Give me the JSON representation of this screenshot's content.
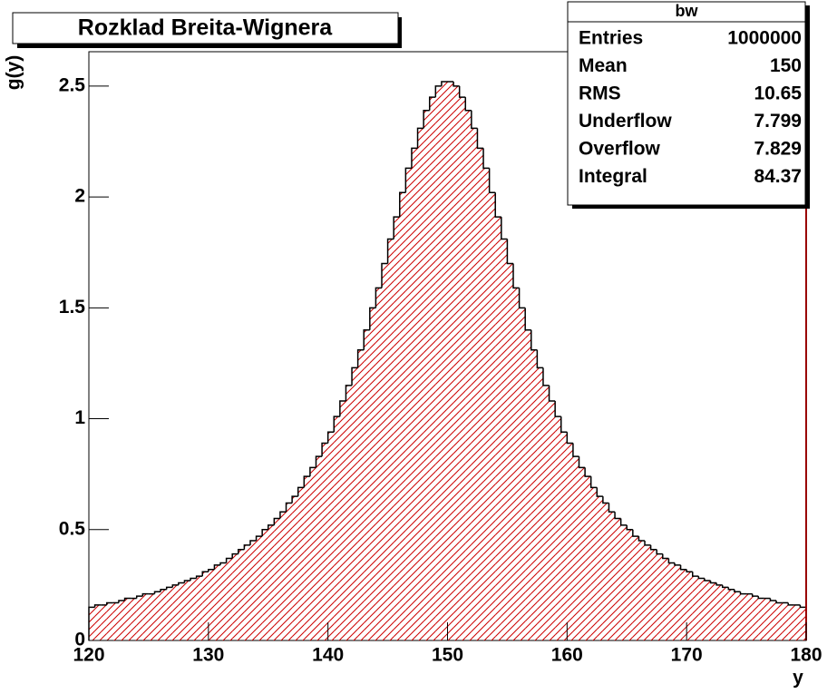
{
  "chart_data": {
    "type": "histogram",
    "title": "Rozklad Breita-Wignera",
    "y_label": "g(y)",
    "x_label": "y",
    "color": "#cc0000",
    "outline_color": "#000000",
    "bins": [
      120,
      120.5,
      121,
      121.5,
      122,
      122.5,
      123,
      123.5,
      124,
      124.5,
      125,
      125.5,
      126,
      126.5,
      127,
      127.5,
      128,
      128.5,
      129,
      129.5,
      130,
      130.5,
      131,
      131.5,
      132,
      132.5,
      133,
      133.5,
      134,
      134.5,
      135,
      135.5,
      136,
      136.5,
      137,
      137.5,
      138,
      138.5,
      139,
      139.5,
      140,
      140.5,
      141,
      141.5,
      142,
      142.5,
      143,
      143.5,
      144,
      144.5,
      145,
      145.5,
      146,
      146.5,
      147,
      147.5,
      148,
      148.5,
      149,
      149.5,
      150,
      150.5,
      151,
      151.5,
      152,
      152.5,
      153,
      153.5,
      154,
      154.5,
      155,
      155.5,
      156,
      156.5,
      157,
      157.5,
      158,
      158.5,
      159,
      159.5,
      160,
      160.5,
      161,
      161.5,
      162,
      162.5,
      163,
      163.5,
      164,
      164.5,
      165,
      165.5,
      166,
      166.5,
      167,
      167.5,
      168,
      168.5,
      169,
      169.5,
      170,
      170.5,
      171,
      171.5,
      172,
      172.5,
      173,
      173.5,
      174,
      174.5,
      175,
      175.5,
      176,
      176.5,
      177,
      177.5,
      178,
      178.5,
      179,
      179.5,
      180
    ],
    "values": [
      0.15,
      0.16,
      0.16,
      0.17,
      0.17,
      0.18,
      0.19,
      0.19,
      0.2,
      0.21,
      0.21,
      0.22,
      0.23,
      0.24,
      0.25,
      0.26,
      0.27,
      0.28,
      0.29,
      0.31,
      0.32,
      0.34,
      0.35,
      0.37,
      0.39,
      0.41,
      0.43,
      0.45,
      0.47,
      0.5,
      0.52,
      0.55,
      0.58,
      0.62,
      0.65,
      0.69,
      0.74,
      0.78,
      0.83,
      0.89,
      0.94,
      1.01,
      1.08,
      1.15,
      1.23,
      1.31,
      1.4,
      1.5,
      1.59,
      1.7,
      1.81,
      1.91,
      2.02,
      2.13,
      2.22,
      2.31,
      2.39,
      2.45,
      2.5,
      2.52,
      2.52,
      2.5,
      2.45,
      2.39,
      2.31,
      2.22,
      2.13,
      2.02,
      1.91,
      1.81,
      1.7,
      1.59,
      1.5,
      1.4,
      1.31,
      1.23,
      1.15,
      1.08,
      1.01,
      0.94,
      0.89,
      0.83,
      0.78,
      0.74,
      0.69,
      0.65,
      0.62,
      0.58,
      0.55,
      0.52,
      0.5,
      0.47,
      0.45,
      0.43,
      0.41,
      0.39,
      0.37,
      0.35,
      0.34,
      0.32,
      0.31,
      0.29,
      0.28,
      0.27,
      0.26,
      0.25,
      0.24,
      0.23,
      0.22,
      0.21,
      0.21,
      0.2,
      0.19,
      0.19,
      0.18,
      0.17,
      0.17,
      0.16,
      0.16,
      0.15
    ],
    "xlim": [
      120,
      180
    ],
    "xticks": [
      120,
      130,
      140,
      150,
      160,
      170,
      180
    ],
    "ylim": [
      0,
      2.655
    ],
    "yticks": [
      0,
      0.5,
      1,
      1.5,
      2,
      2.5
    ],
    "stats": {
      "title": "bw",
      "rows": [
        [
          "Entries",
          1000000
        ],
        [
          "Mean",
          150
        ],
        [
          "RMS",
          10.65
        ],
        [
          "Underflow",
          7.799
        ],
        [
          "Overflow",
          7.829
        ],
        [
          "Integral",
          84.37
        ]
      ]
    }
  }
}
